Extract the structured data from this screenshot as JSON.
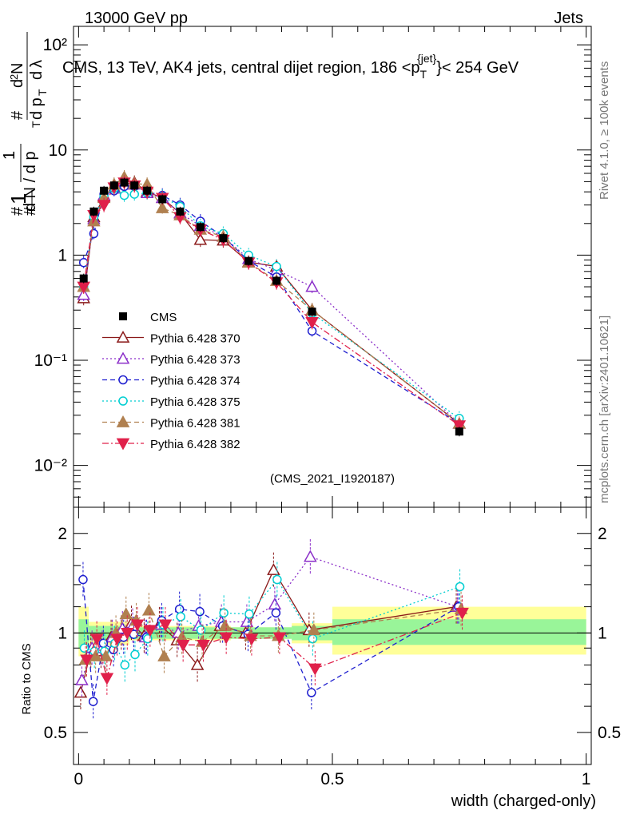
{
  "header": {
    "left": "13000 GeV pp",
    "right": "Jets",
    "title_main": "CMS, 13 TeV, AK4 jets, central dijet region, 186 <p",
    "title_sub": "T",
    "title_sup": "{jet}",
    "title_end": "}< 254 GeV",
    "ref": "(CMS_2021_I1920187)"
  },
  "side": {
    "rivet": "Rivet 4.1.0, ≥ 100k events",
    "mcplots": "mcplots.cern.ch [arXiv:2401.10621]"
  },
  "axes": {
    "xlabel": "width (charged-only)",
    "ratio_ylabel": "Ratio to CMS",
    "x_ticks": [
      "0",
      "0.5",
      "1"
    ],
    "main_y_ticks": [
      "10²",
      "10",
      "1",
      "10⁻¹",
      "10⁻²"
    ],
    "ratio_y_ticks": [
      "2",
      "1",
      "0.5"
    ]
  },
  "chart_data": {
    "type": "line",
    "title": "CMS, 13 TeV, AK4 jets, central dijet region, 186 < pT{jet} < 254 GeV",
    "xlabel": "width (charged-only)",
    "ylabel": "1/dN/dpT  d²N/dpT dλ",
    "xlim": [
      -0.01,
      1.01
    ],
    "ylim": [
      0.004,
      150
    ],
    "yscale": "log",
    "x": [
      0.01,
      0.03,
      0.05,
      0.07,
      0.09,
      0.11,
      0.135,
      0.165,
      0.2,
      0.24,
      0.285,
      0.335,
      0.39,
      0.46,
      0.75
    ],
    "data": {
      "name": "CMS",
      "values": [
        0.6,
        2.6,
        4.1,
        4.6,
        4.9,
        4.6,
        4.1,
        3.4,
        2.6,
        1.85,
        1.45,
        0.88,
        0.57,
        0.29,
        0.021
      ]
    },
    "series": [
      {
        "name": "Pythia 6.428 370",
        "color": "#8b1a1a",
        "marker": "triangle-open",
        "dash": "solid",
        "values": [
          0.39,
          2.3,
          3.6,
          4.4,
          4.7,
          4.9,
          4.0,
          3.5,
          2.5,
          1.4,
          1.38,
          0.86,
          0.78,
          0.3,
          0.025
        ]
      },
      {
        "name": "Pythia 6.428 373",
        "color": "#8b2fc9",
        "marker": "triangle-open",
        "dash": "dot",
        "values": [
          0.42,
          2.2,
          3.7,
          4.3,
          4.8,
          4.7,
          3.9,
          3.5,
          2.5,
          1.9,
          1.5,
          0.92,
          0.72,
          0.5,
          0.025
        ]
      },
      {
        "name": "Pythia 6.428 374",
        "color": "#1f1fcf",
        "marker": "circle-open",
        "dash": "dash",
        "values": [
          0.85,
          1.6,
          3.8,
          4.1,
          4.5,
          4.5,
          4.0,
          3.7,
          3.0,
          2.1,
          1.5,
          0.88,
          0.62,
          0.19,
          0.025
        ]
      },
      {
        "name": "Pythia 6.428 375",
        "color": "#00ced1",
        "marker": "circle-open",
        "dash": "dot",
        "values": [
          0.5,
          2.3,
          3.6,
          4.3,
          3.7,
          3.8,
          3.9,
          3.6,
          2.9,
          1.9,
          1.6,
          1.0,
          0.78,
          0.28,
          0.028
        ]
      },
      {
        "name": "Pythia 6.428 381",
        "color": "#b08050",
        "marker": "triangle-filled",
        "dash": "dash",
        "values": [
          0.5,
          2.1,
          3.5,
          4.7,
          5.5,
          4.8,
          4.7,
          2.8,
          2.4,
          1.75,
          1.5,
          0.85,
          0.57,
          0.3,
          0.025
        ]
      },
      {
        "name": "Pythia 6.428 382",
        "color": "#e0204a",
        "marker": "triangle-down-filled",
        "dash": "dashdot",
        "values": [
          0.5,
          2.4,
          3.0,
          4.4,
          4.9,
          4.6,
          4.0,
          3.5,
          2.3,
          1.75,
          1.4,
          0.85,
          0.55,
          0.23,
          0.024
        ]
      }
    ],
    "ratio": {
      "ylabel": "Ratio to CMS",
      "ylim": [
        0.4,
        2.4
      ],
      "band_inner": [
        [
          0.0,
          0.02,
          0.9,
          1.1
        ],
        [
          0.02,
          0.1,
          0.95,
          1.05
        ],
        [
          0.1,
          0.3,
          0.96,
          1.04
        ],
        [
          0.3,
          0.42,
          0.96,
          1.04
        ],
        [
          0.42,
          0.5,
          0.95,
          1.05
        ],
        [
          0.5,
          1.0,
          0.92,
          1.1
        ]
      ],
      "band_outer": [
        [
          0.0,
          0.02,
          0.85,
          1.2
        ],
        [
          0.02,
          0.1,
          0.92,
          1.08
        ],
        [
          0.1,
          0.3,
          0.95,
          1.05
        ],
        [
          0.3,
          0.42,
          0.96,
          1.04
        ],
        [
          0.42,
          0.5,
          0.93,
          1.07
        ],
        [
          0.5,
          1.0,
          0.86,
          1.2
        ]
      ],
      "series": [
        {
          "name": "Pythia 6.428 370",
          "values": [
            0.66,
            0.88,
            0.88,
            0.97,
            1.0,
            1.07,
            0.98,
            1.06,
            0.95,
            0.8,
            1.05,
            1.0,
            1.55,
            1.02,
            1.2
          ]
        },
        {
          "name": "Pythia 6.428 373",
          "values": [
            0.72,
            0.9,
            0.9,
            0.97,
            1.03,
            1.05,
            0.97,
            1.06,
            1.0,
            1.05,
            1.08,
            1.08,
            1.22,
            1.7,
            1.2
          ]
        },
        {
          "name": "Pythia 6.428 374",
          "values": [
            1.45,
            0.62,
            0.93,
            0.89,
            0.97,
            0.99,
            0.97,
            1.09,
            1.18,
            1.16,
            1.05,
            0.99,
            1.15,
            0.66,
            1.2
          ]
        },
        {
          "name": "Pythia 6.428 375",
          "values": [
            0.9,
            0.88,
            0.88,
            0.93,
            0.8,
            0.86,
            0.96,
            1.06,
            1.12,
            1.02,
            1.15,
            1.14,
            1.45,
            0.96,
            1.38
          ]
        },
        {
          "name": "Pythia 6.428 381",
          "values": [
            0.83,
            0.85,
            0.85,
            1.0,
            1.14,
            1.09,
            1.17,
            0.85,
            0.97,
            0.94,
            1.05,
            0.98,
            0.98,
            1.02,
            1.18
          ]
        },
        {
          "name": "Pythia 6.428 382",
          "values": [
            0.83,
            0.96,
            0.73,
            0.96,
            1.0,
            1.06,
            1.02,
            1.06,
            0.92,
            0.92,
            0.97,
            0.96,
            0.97,
            0.78,
            1.15
          ]
        }
      ]
    }
  }
}
